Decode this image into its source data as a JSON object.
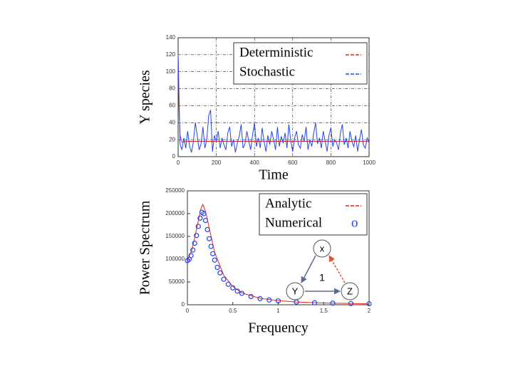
{
  "chart_data": [
    {
      "type": "line",
      "ylabel": "Y species",
      "xlabel": "Time",
      "xlim": [
        0,
        1000
      ],
      "xticks": [
        0,
        200,
        400,
        600,
        800,
        1000
      ],
      "ylim": [
        0,
        140
      ],
      "yticks": [
        0,
        20,
        40,
        60,
        80,
        100,
        120,
        140
      ],
      "grid": true,
      "legend": "upper right",
      "series": [
        {
          "name": "Deterministic",
          "color": "#ee2211",
          "x": [
            0,
            5,
            10,
            20,
            40,
            100,
            200,
            400,
            600,
            800,
            1000
          ],
          "values": [
            120,
            55,
            25,
            17,
            18,
            18,
            18,
            18,
            18,
            18,
            18
          ]
        },
        {
          "name": "Stochastic",
          "color": "#2244ee",
          "x": [
            0,
            10,
            20,
            30,
            40,
            50,
            60,
            70,
            80,
            90,
            100,
            110,
            120,
            130,
            140,
            150,
            160,
            170,
            180,
            190,
            200,
            210,
            220,
            230,
            240,
            250,
            260,
            270,
            280,
            290,
            300,
            310,
            320,
            330,
            340,
            350,
            360,
            370,
            380,
            390,
            400,
            410,
            420,
            430,
            440,
            450,
            460,
            470,
            480,
            490,
            500,
            510,
            520,
            530,
            540,
            550,
            560,
            570,
            580,
            590,
            600,
            610,
            620,
            630,
            640,
            650,
            660,
            670,
            680,
            690,
            700,
            710,
            720,
            730,
            740,
            750,
            760,
            770,
            780,
            790,
            800,
            810,
            820,
            830,
            840,
            850,
            860,
            870,
            880,
            890,
            900,
            910,
            920,
            930,
            940,
            950,
            960,
            970,
            980,
            990,
            1000
          ],
          "values": [
            120,
            15,
            8,
            22,
            10,
            30,
            12,
            5,
            18,
            40,
            25,
            8,
            15,
            35,
            10,
            20,
            48,
            55,
            6,
            25,
            18,
            30,
            10,
            22,
            14,
            8,
            28,
            35,
            12,
            20,
            5,
            16,
            24,
            38,
            10,
            15,
            30,
            18,
            8,
            26,
            40,
            12,
            22,
            10,
            34,
            18,
            6,
            25,
            14,
            30,
            20,
            8,
            35,
            12,
            24,
            16,
            28,
            10,
            38,
            18,
            6,
            22,
            30,
            14,
            10,
            26,
            18,
            35,
            8,
            20,
            12,
            28,
            40,
            15,
            22,
            10,
            30,
            18,
            6,
            25,
            34,
            12,
            20,
            16,
            8,
            28,
            38,
            14,
            22,
            10,
            30,
            18,
            12,
            25,
            6,
            20,
            32,
            14,
            10,
            22,
            16
          ]
        }
      ]
    },
    {
      "type": "line",
      "ylabel": "Power Spectrum",
      "xlabel": "Frequency",
      "xlim": [
        0,
        2
      ],
      "xticks": [
        0,
        0.5,
        1,
        1.5,
        2
      ],
      "ylim": [
        0,
        250000
      ],
      "yticks": [
        0,
        50000,
        100000,
        150000,
        200000,
        250000
      ],
      "grid": false,
      "legend": "upper right",
      "series": [
        {
          "name": "Analytic",
          "color": "#ee2211",
          "kind": "line",
          "x": [
            0,
            0.05,
            0.1,
            0.15,
            0.17,
            0.2,
            0.25,
            0.3,
            0.4,
            0.5,
            0.6,
            0.8,
            1,
            1.2,
            1.5,
            2
          ],
          "values": [
            97000,
            120000,
            165000,
            212000,
            220000,
            205000,
            160000,
            115000,
            65000,
            40000,
            26000,
            14000,
            9000,
            6000,
            4000,
            2000
          ]
        },
        {
          "name": "Numerical",
          "color": "#2244ee",
          "kind": "scatter",
          "x": [
            0,
            0.02,
            0.04,
            0.06,
            0.08,
            0.1,
            0.12,
            0.14,
            0.16,
            0.18,
            0.2,
            0.22,
            0.24,
            0.26,
            0.28,
            0.3,
            0.33,
            0.36,
            0.4,
            0.45,
            0.5,
            0.55,
            0.6,
            0.7,
            0.8,
            0.9,
            1,
            1.2,
            1.4,
            1.6,
            1.8,
            2
          ],
          "values": [
            97000,
            100000,
            108000,
            120000,
            135000,
            152000,
            172000,
            190000,
            203000,
            200000,
            185000,
            165000,
            145000,
            128000,
            112000,
            98000,
            82000,
            70000,
            56000,
            45000,
            37000,
            30000,
            25000,
            18000,
            13500,
            10500,
            8500,
            6000,
            4500,
            3500,
            2800,
            2200
          ]
        }
      ],
      "inset": {
        "nodes": [
          "x",
          "Y",
          "Z"
        ],
        "label": "1"
      }
    }
  ]
}
